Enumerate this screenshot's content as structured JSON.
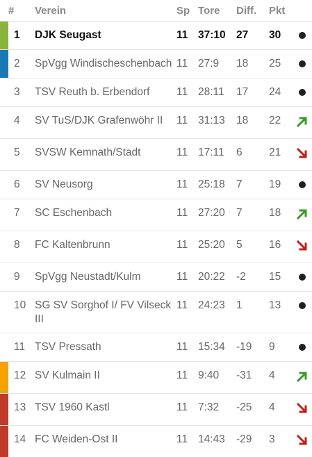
{
  "header": {
    "rank": "#",
    "club": "Verein",
    "played": "Sp",
    "goals": "Tore",
    "diff": "Diff.",
    "points": "Pkt"
  },
  "colors": {
    "promotion": "#8bb43a",
    "relegation_playoff_up": "#1b79b5",
    "relegation_playoff_down": "#f6a200",
    "relegation": "#c0392b",
    "trend_up": "#3a9a2e",
    "trend_down": "#c0201a",
    "trend_same": "#1f1f1f"
  },
  "rows": [
    {
      "rank": "1",
      "club": "DJK Seugast",
      "played": "11",
      "goals": "37:10",
      "diff": "27",
      "points": "30",
      "trend": "same",
      "marker": "promotion"
    },
    {
      "rank": "2",
      "club": "SpVgg Windischeschenbach",
      "played": "11",
      "goals": "27:9",
      "diff": "18",
      "points": "25",
      "trend": "same",
      "marker": "relegation_playoff_up"
    },
    {
      "rank": "3",
      "club": "TSV Reuth b. Erbendorf",
      "played": "11",
      "goals": "28:11",
      "diff": "17",
      "points": "24",
      "trend": "same",
      "marker": ""
    },
    {
      "rank": "4",
      "club": "SV TuS/DJK Grafenwöhr II",
      "played": "11",
      "goals": "31:13",
      "diff": "18",
      "points": "22",
      "trend": "up",
      "marker": ""
    },
    {
      "rank": "5",
      "club": "SVSW Kemnath/Stadt",
      "played": "11",
      "goals": "17:11",
      "diff": "6",
      "points": "21",
      "trend": "down",
      "marker": ""
    },
    {
      "rank": "6",
      "club": "SV Neusorg",
      "played": "11",
      "goals": "25:18",
      "diff": "7",
      "points": "19",
      "trend": "same",
      "marker": ""
    },
    {
      "rank": "7",
      "club": "SC Eschenbach",
      "played": "11",
      "goals": "27:20",
      "diff": "7",
      "points": "18",
      "trend": "up",
      "marker": ""
    },
    {
      "rank": "8",
      "club": "FC Kaltenbrunn",
      "played": "11",
      "goals": "25:20",
      "diff": "5",
      "points": "16",
      "trend": "down",
      "marker": ""
    },
    {
      "rank": "9",
      "club": "SpVgg Neustadt/Kulm",
      "played": "11",
      "goals": "20:22",
      "diff": "-2",
      "points": "15",
      "trend": "same",
      "marker": ""
    },
    {
      "rank": "10",
      "club": "SG SV Sorghof I/ FV Vilseck III",
      "played": "11",
      "goals": "24:23",
      "diff": "1",
      "points": "13",
      "trend": "same",
      "marker": ""
    },
    {
      "rank": "11",
      "club": "TSV Pressath",
      "played": "11",
      "goals": "15:34",
      "diff": "-19",
      "points": "9",
      "trend": "same",
      "marker": ""
    },
    {
      "rank": "12",
      "club": "SV Kulmain II",
      "played": "11",
      "goals": "9:40",
      "diff": "-31",
      "points": "4",
      "trend": "up",
      "marker": "relegation_playoff_down"
    },
    {
      "rank": "13",
      "club": "TSV 1960 Kastl",
      "played": "11",
      "goals": "7:32",
      "diff": "-25",
      "points": "4",
      "trend": "down",
      "marker": "relegation"
    },
    {
      "rank": "14",
      "club": "FC Weiden-Ost II",
      "played": "11",
      "goals": "14:43",
      "diff": "-29",
      "points": "3",
      "trend": "down",
      "marker": "relegation"
    }
  ]
}
